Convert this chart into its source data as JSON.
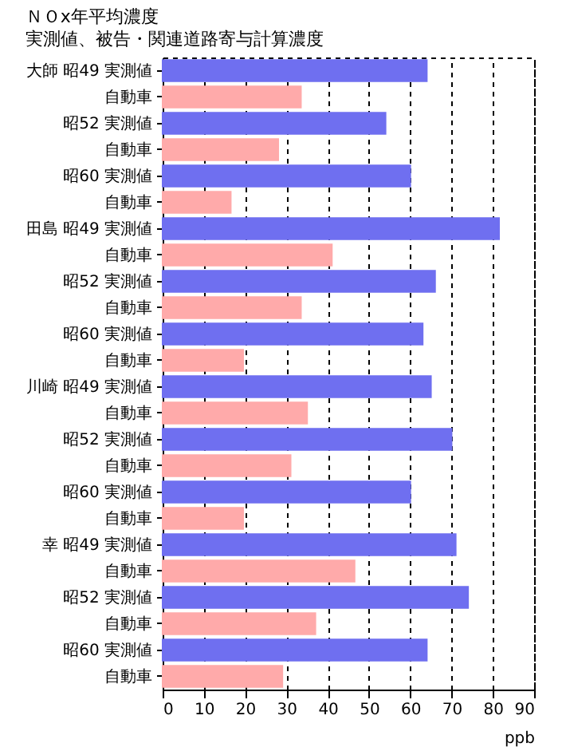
{
  "chart_data": {
    "type": "bar",
    "orientation": "horizontal",
    "title": "ＮＯx年平均濃度",
    "subtitle": "実測値、被告・関連道路寄与計算濃度",
    "xlabel": "ppb",
    "categories": [
      "大師 昭49 実測値",
      "自動車",
      "昭52 実測値",
      "自動車",
      "昭60 実測値",
      "自動車",
      "田島 昭49 実測値",
      "自動車",
      "昭52 実測値",
      "自動車",
      "昭60 実測値",
      "自動車",
      "川崎 昭49 実測値",
      "自動車",
      "昭52 実測値",
      "自動車",
      "昭60 実測値",
      "自動車",
      "幸 昭49 実測値",
      "自動車",
      "昭52 実測値",
      "自動車",
      "昭60 実測値",
      "自動車"
    ],
    "values": [
      64,
      33.5,
      54,
      28,
      60,
      16.5,
      81.5,
      41,
      66,
      33.5,
      63,
      19.5,
      65,
      35,
      70,
      31,
      60,
      19.5,
      71,
      46.5,
      74,
      37,
      64,
      29
    ],
    "colors": [
      "#6f6ff0",
      "#ffaaaa",
      "#6f6ff0",
      "#ffaaaa",
      "#6f6ff0",
      "#ffaaaa",
      "#6f6ff0",
      "#ffaaaa",
      "#6f6ff0",
      "#ffaaaa",
      "#6f6ff0",
      "#ffaaaa",
      "#6f6ff0",
      "#ffaaaa",
      "#6f6ff0",
      "#ffaaaa",
      "#6f6ff0",
      "#ffaaaa",
      "#6f6ff0",
      "#ffaaaa",
      "#6f6ff0",
      "#ffaaaa",
      "#6f6ff0",
      "#ffaaaa"
    ],
    "xlim": [
      0,
      90
    ],
    "xticks": [
      0,
      10,
      20,
      30,
      40,
      50,
      60,
      70,
      80,
      90
    ],
    "grid": "x"
  }
}
